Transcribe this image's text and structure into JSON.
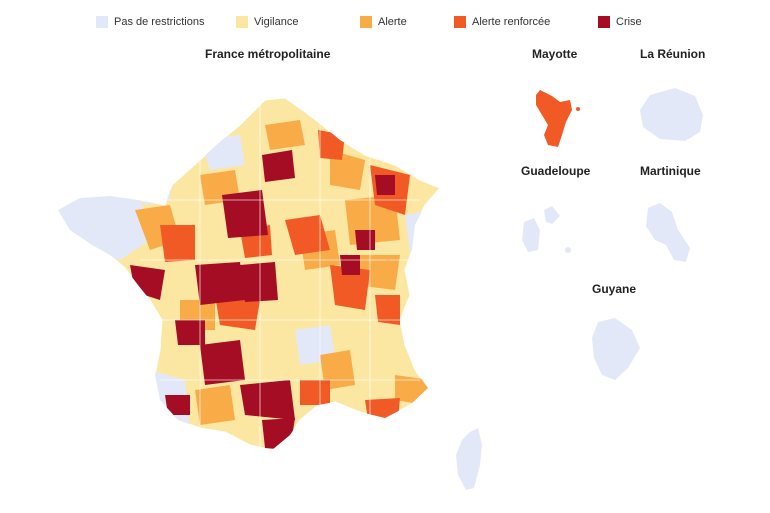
{
  "legend": [
    {
      "label": "Pas de restrictions",
      "color": "#e3e8f8"
    },
    {
      "label": "Vigilance",
      "color": "#fbe7a1"
    },
    {
      "label": "Alerte",
      "color": "#f9ab48"
    },
    {
      "label": "Alerte renforcée",
      "color": "#f25a25"
    },
    {
      "label": "Crise",
      "color": "#a50d25"
    }
  ],
  "titles": {
    "metropole": "France métropolitaine",
    "mayotte": "Mayotte",
    "reunion": "La Réunion",
    "guadeloupe": "Guadeloupe",
    "martinique": "Martinique",
    "guyane": "Guyane"
  },
  "territory_levels": {
    "mayotte": "Alerte renforcée",
    "reunion": "Pas de restrictions",
    "guadeloupe": "Pas de restrictions",
    "martinique": "Pas de restrictions",
    "guyane": "Pas de restrictions",
    "corse": "Pas de restrictions"
  }
}
